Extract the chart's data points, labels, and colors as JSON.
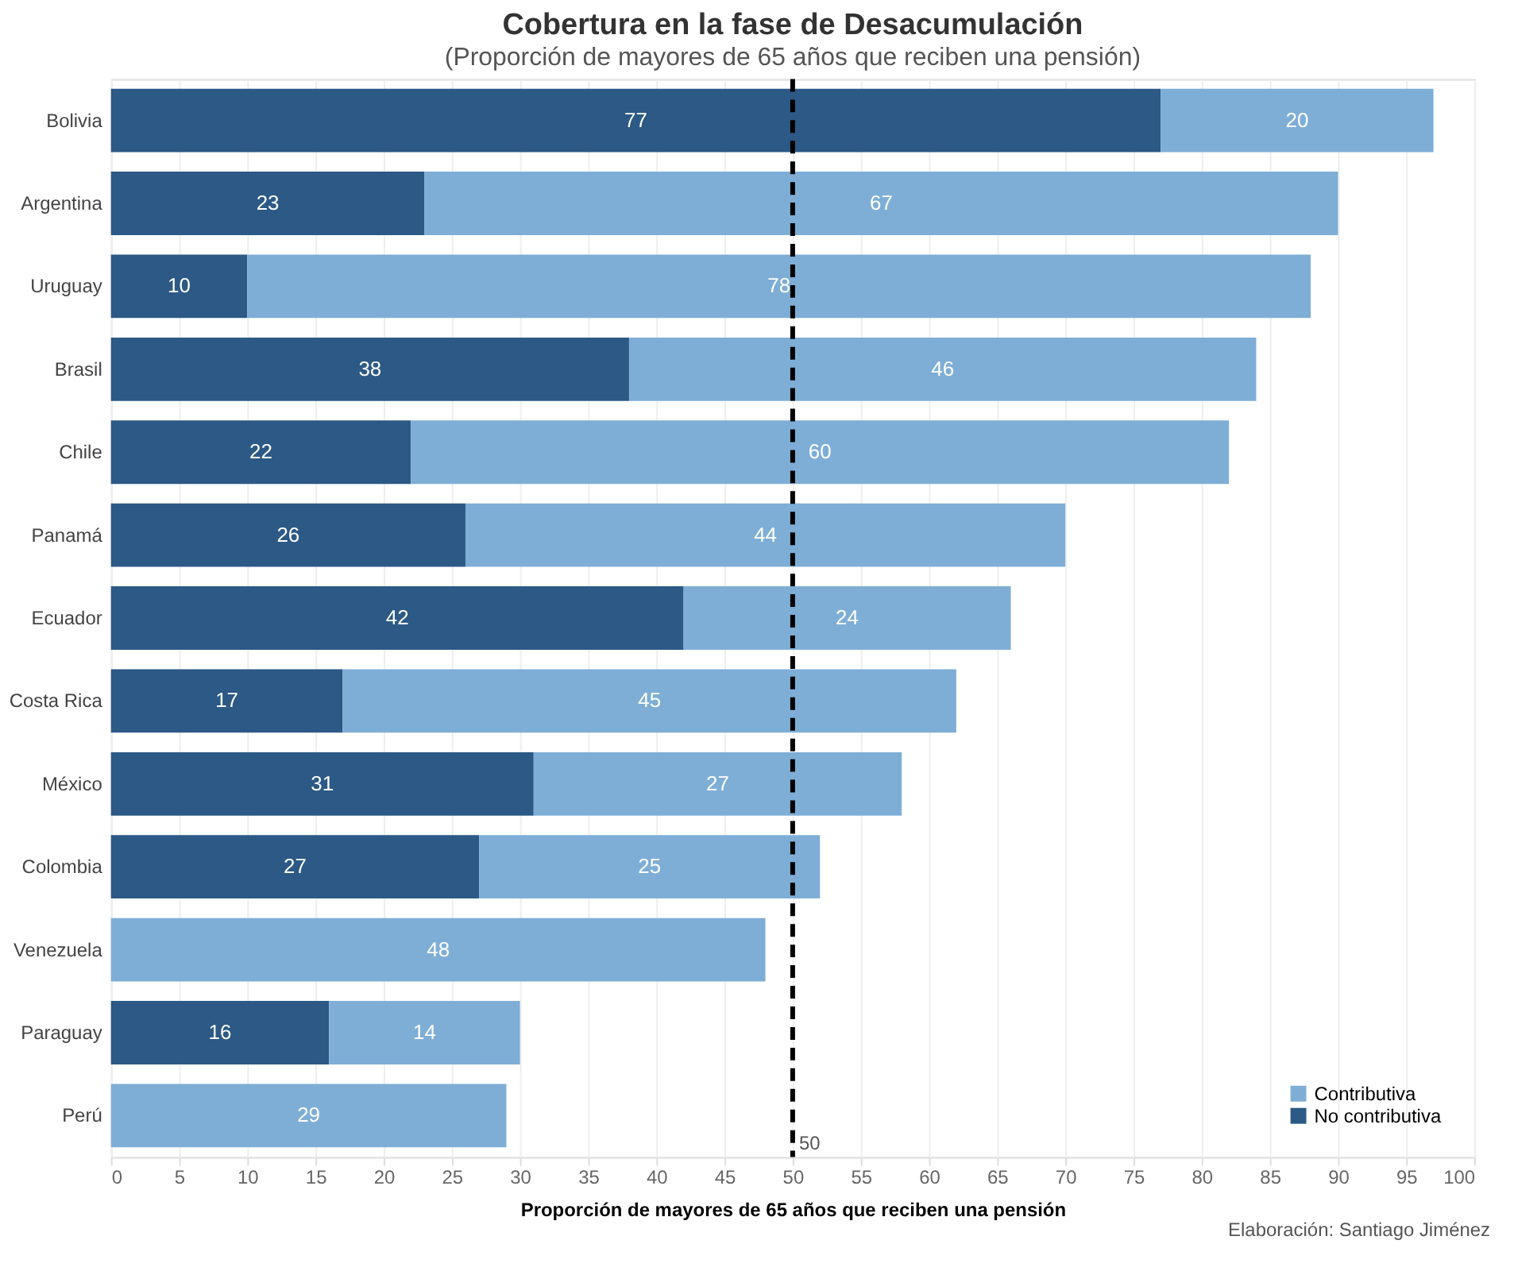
{
  "chart_data": {
    "type": "bar",
    "orientation": "horizontal",
    "stacked": true,
    "title": "Cobertura en la fase de Desacumulación",
    "subtitle": "(Proporción de mayores de 65 años que reciben una pensión)",
    "xlabel": "Proporción de mayores de 65 años que reciben una pensión",
    "categories": [
      "Bolivia",
      "Argentina",
      "Uruguay",
      "Brasil",
      "Chile",
      "Panamá",
      "Ecuador",
      "Costa Rica",
      "México",
      "Colombia",
      "Venezuela",
      "Paraguay",
      "Perú"
    ],
    "series": [
      {
        "name": "No contributiva",
        "color": "#2c5985",
        "values": [
          77,
          23,
          10,
          38,
          22,
          26,
          42,
          17,
          31,
          27,
          null,
          16,
          null
        ]
      },
      {
        "name": "Contributiva",
        "color": "#7eaed6",
        "values": [
          20,
          67,
          78,
          46,
          60,
          44,
          24,
          45,
          27,
          25,
          48,
          14,
          29
        ]
      }
    ],
    "xlim": [
      0,
      100
    ],
    "xticks": [
      0,
      5,
      10,
      15,
      20,
      25,
      30,
      35,
      40,
      45,
      50,
      55,
      60,
      65,
      70,
      75,
      80,
      85,
      90,
      95,
      100
    ],
    "grid": "x",
    "legend": "bottom right",
    "data_labels": true,
    "ref_lines": [
      {
        "axis": "x",
        "value": 50,
        "label": "50",
        "color": "#000000",
        "line_style": "dashed"
      }
    ],
    "annotations": [
      "Elaboración: Santiago Jiménez"
    ]
  }
}
